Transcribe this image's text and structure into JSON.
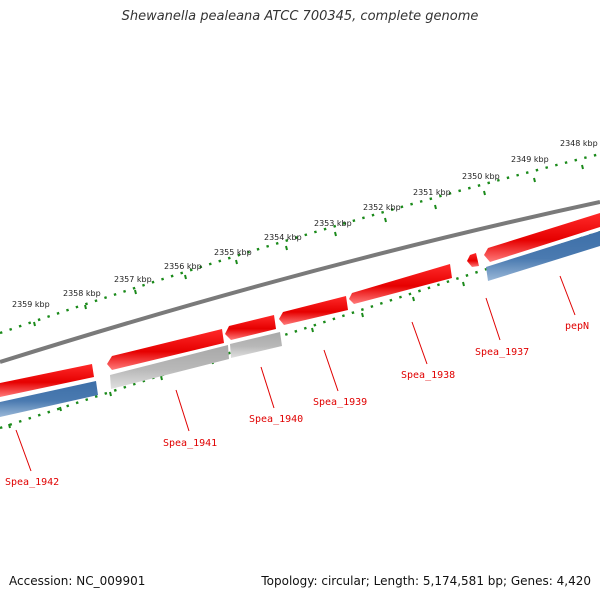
{
  "header": {
    "title": "Shewanella pealeana ATCC 700345, complete genome"
  },
  "footer": {
    "accession": "Accession: NC_009901",
    "stats": "Topology: circular; Length: 5,174,581 bp; Genes: 4,420"
  },
  "colors": {
    "forward_gene": "#e60000",
    "reverse_gene": "#4a7ab0",
    "pseudo_gene": "#b8b8b8",
    "backbone": "#7a7a7a",
    "tick": "#1a8a1a",
    "gene_label": "#e00000"
  },
  "scale_labels": [
    "2348 kbp",
    "2349 kbp",
    "2350 kbp",
    "2351 kbp",
    "2352 kbp",
    "2353 kbp",
    "2354 kbp",
    "2355 kbp",
    "2356 kbp",
    "2357 kbp",
    "2358 kbp",
    "2359 kbp"
  ],
  "genes": [
    {
      "name": "pepN",
      "track": "reverse"
    },
    {
      "name": "Spea_1937",
      "track": "forward"
    },
    {
      "name": "Spea_1938",
      "track": "forward"
    },
    {
      "name": "Spea_1939",
      "track": "forward"
    },
    {
      "name": "Spea_1940",
      "track": "forward"
    },
    {
      "name": "Spea_1941",
      "track": "forward"
    },
    {
      "name": "Spea_1942",
      "track": "reverse"
    }
  ],
  "pseudo_segments": [
    {
      "name": "pseudo-segment-1",
      "track": "reverse"
    },
    {
      "name": "pseudo-segment-2",
      "track": "reverse"
    }
  ]
}
